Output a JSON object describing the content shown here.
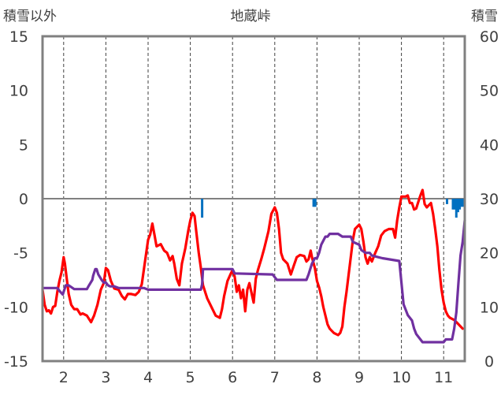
{
  "chart_data": {
    "type": "line",
    "title": "地蔵峠",
    "left_axis_label": "積雪以外",
    "right_axis_label": "積雪",
    "y_left": {
      "range": [
        -15,
        15
      ],
      "ticks": [
        15,
        10,
        5,
        0,
        -5,
        -10,
        -15
      ]
    },
    "y_right": {
      "range": [
        0,
        60
      ],
      "ticks": [
        60,
        50,
        40,
        30,
        20,
        10,
        0
      ]
    },
    "x": {
      "range": [
        1.5,
        11.5
      ],
      "ticks": [
        2,
        3,
        4,
        5,
        6,
        7,
        8,
        9,
        10,
        11
      ]
    },
    "grid": "vertical dashed at day ticks, horizontal at 0",
    "series": [
      {
        "axis": "left",
        "color": "#ff0000",
        "points": [
          [
            1.5,
            -8.4
          ],
          [
            1.55,
            -9.8
          ],
          [
            1.6,
            -10.4
          ],
          [
            1.65,
            -10.3
          ],
          [
            1.7,
            -10.6
          ],
          [
            1.75,
            -10.0
          ],
          [
            1.8,
            -9.9
          ],
          [
            1.85,
            -8.6
          ],
          [
            1.9,
            -7.6
          ],
          [
            1.95,
            -6.8
          ],
          [
            2.0,
            -5.4
          ],
          [
            2.03,
            -6.0
          ],
          [
            2.08,
            -7.6
          ],
          [
            2.12,
            -8.8
          ],
          [
            2.18,
            -9.8
          ],
          [
            2.25,
            -10.2
          ],
          [
            2.32,
            -10.2
          ],
          [
            2.4,
            -10.7
          ],
          [
            2.45,
            -10.6
          ],
          [
            2.55,
            -10.8
          ],
          [
            2.65,
            -11.4
          ],
          [
            2.72,
            -10.8
          ],
          [
            2.8,
            -9.8
          ],
          [
            2.88,
            -8.4
          ],
          [
            2.95,
            -7.8
          ],
          [
            3.0,
            -6.4
          ],
          [
            3.05,
            -6.6
          ],
          [
            3.12,
            -7.6
          ],
          [
            3.2,
            -8.3
          ],
          [
            3.3,
            -8.4
          ],
          [
            3.38,
            -9.0
          ],
          [
            3.45,
            -9.3
          ],
          [
            3.52,
            -8.8
          ],
          [
            3.6,
            -8.8
          ],
          [
            3.7,
            -8.9
          ],
          [
            3.78,
            -8.6
          ],
          [
            3.85,
            -7.9
          ],
          [
            3.92,
            -6.0
          ],
          [
            4.0,
            -3.8
          ],
          [
            4.05,
            -3.3
          ],
          [
            4.1,
            -2.3
          ],
          [
            4.15,
            -3.3
          ],
          [
            4.2,
            -4.4
          ],
          [
            4.3,
            -4.2
          ],
          [
            4.38,
            -4.8
          ],
          [
            4.45,
            -5.0
          ],
          [
            4.52,
            -5.7
          ],
          [
            4.58,
            -5.3
          ],
          [
            4.62,
            -6.0
          ],
          [
            4.68,
            -7.4
          ],
          [
            4.74,
            -8.0
          ],
          [
            4.8,
            -6.0
          ],
          [
            4.88,
            -4.6
          ],
          [
            4.95,
            -3.0
          ],
          [
            5.0,
            -2.0
          ],
          [
            5.05,
            -1.3
          ],
          [
            5.1,
            -1.6
          ],
          [
            5.14,
            -3.0
          ],
          [
            5.2,
            -5.0
          ],
          [
            5.25,
            -6.4
          ],
          [
            5.3,
            -8.0
          ],
          [
            5.4,
            -9.2
          ],
          [
            5.5,
            -10.0
          ],
          [
            5.6,
            -10.8
          ],
          [
            5.7,
            -11.0
          ],
          [
            5.75,
            -10.2
          ],
          [
            5.8,
            -9.0
          ],
          [
            5.88,
            -7.6
          ],
          [
            5.95,
            -7.0
          ],
          [
            6.0,
            -6.6
          ],
          [
            6.05,
            -7.2
          ],
          [
            6.1,
            -8.6
          ],
          [
            6.15,
            -8.0
          ],
          [
            6.2,
            -9.2
          ],
          [
            6.25,
            -8.4
          ],
          [
            6.3,
            -10.4
          ],
          [
            6.35,
            -8.4
          ],
          [
            6.4,
            -7.8
          ],
          [
            6.45,
            -8.7
          ],
          [
            6.5,
            -9.6
          ],
          [
            6.55,
            -7.4
          ],
          [
            6.6,
            -6.6
          ],
          [
            6.68,
            -5.6
          ],
          [
            6.75,
            -4.6
          ],
          [
            6.85,
            -3.0
          ],
          [
            6.92,
            -1.4
          ],
          [
            7.0,
            -0.8
          ],
          [
            7.05,
            -1.3
          ],
          [
            7.1,
            -2.8
          ],
          [
            7.15,
            -5.0
          ],
          [
            7.2,
            -5.6
          ],
          [
            7.3,
            -6.0
          ],
          [
            7.38,
            -7.0
          ],
          [
            7.45,
            -6.2
          ],
          [
            7.52,
            -5.4
          ],
          [
            7.6,
            -5.2
          ],
          [
            7.7,
            -5.3
          ],
          [
            7.75,
            -5.8
          ],
          [
            7.8,
            -5.6
          ],
          [
            7.85,
            -4.8
          ],
          [
            7.88,
            -5.4
          ],
          [
            7.95,
            -6.4
          ],
          [
            8.0,
            -7.6
          ],
          [
            8.05,
            -8.2
          ],
          [
            8.1,
            -9.0
          ],
          [
            8.15,
            -10.0
          ],
          [
            8.2,
            -10.8
          ],
          [
            8.25,
            -11.6
          ],
          [
            8.3,
            -12.0
          ],
          [
            8.4,
            -12.4
          ],
          [
            8.5,
            -12.6
          ],
          [
            8.55,
            -12.4
          ],
          [
            8.6,
            -11.8
          ],
          [
            8.65,
            -10.0
          ],
          [
            8.7,
            -8.6
          ],
          [
            8.75,
            -7.0
          ],
          [
            8.8,
            -5.4
          ],
          [
            8.85,
            -3.8
          ],
          [
            8.9,
            -2.8
          ],
          [
            8.95,
            -2.6
          ],
          [
            9.0,
            -2.4
          ],
          [
            9.05,
            -2.8
          ],
          [
            9.1,
            -4.0
          ],
          [
            9.15,
            -5.4
          ],
          [
            9.2,
            -6.0
          ],
          [
            9.25,
            -5.4
          ],
          [
            9.3,
            -5.8
          ],
          [
            9.38,
            -5.0
          ],
          [
            9.45,
            -4.4
          ],
          [
            9.52,
            -3.4
          ],
          [
            9.6,
            -3.0
          ],
          [
            9.7,
            -2.8
          ],
          [
            9.8,
            -2.8
          ],
          [
            9.85,
            -3.6
          ],
          [
            9.9,
            -2.0
          ],
          [
            9.95,
            -0.8
          ],
          [
            10.0,
            0.2
          ],
          [
            10.1,
            0.2
          ],
          [
            10.15,
            0.3
          ],
          [
            10.2,
            -0.4
          ],
          [
            10.25,
            -0.4
          ],
          [
            10.3,
            -1.0
          ],
          [
            10.35,
            -0.9
          ],
          [
            10.4,
            -0.3
          ],
          [
            10.45,
            0.3
          ],
          [
            10.5,
            0.8
          ],
          [
            10.55,
            -0.5
          ],
          [
            10.6,
            -0.8
          ],
          [
            10.65,
            -0.6
          ],
          [
            10.7,
            -0.4
          ],
          [
            10.75,
            -1.4
          ],
          [
            10.8,
            -2.8
          ],
          [
            10.85,
            -4.4
          ],
          [
            10.9,
            -6.6
          ],
          [
            10.95,
            -8.4
          ],
          [
            11.0,
            -9.6
          ],
          [
            11.05,
            -10.4
          ],
          [
            11.1,
            -10.8
          ],
          [
            11.15,
            -11.0
          ],
          [
            11.25,
            -11.2
          ],
          [
            11.35,
            -11.6
          ],
          [
            11.45,
            -12.0
          ]
        ]
      },
      {
        "axis": "right",
        "color": "#7030a0",
        "points": [
          [
            1.5,
            13.5
          ],
          [
            1.85,
            13.5
          ],
          [
            1.92,
            12.8
          ],
          [
            1.98,
            12.3
          ],
          [
            2.05,
            14.0
          ],
          [
            2.12,
            14.0
          ],
          [
            2.25,
            13.3
          ],
          [
            2.55,
            13.3
          ],
          [
            2.6,
            14.0
          ],
          [
            2.68,
            15.0
          ],
          [
            2.7,
            15.8
          ],
          [
            2.75,
            17.0
          ],
          [
            2.78,
            17.0
          ],
          [
            2.82,
            16.0
          ],
          [
            2.9,
            15.0
          ],
          [
            2.95,
            14.5
          ],
          [
            3.0,
            14.5
          ],
          [
            3.05,
            14.0
          ],
          [
            3.1,
            13.8
          ],
          [
            3.2,
            13.8
          ],
          [
            3.3,
            13.5
          ],
          [
            3.9,
            13.5
          ],
          [
            4.0,
            13.2
          ],
          [
            5.25,
            13.2
          ],
          [
            5.28,
            14.2
          ],
          [
            5.3,
            17.0
          ],
          [
            6.0,
            17.0
          ],
          [
            6.05,
            16.2
          ],
          [
            6.95,
            16.0
          ],
          [
            7.05,
            15.0
          ],
          [
            7.75,
            15.0
          ],
          [
            7.8,
            16.0
          ],
          [
            7.88,
            18.0
          ],
          [
            7.95,
            19.0
          ],
          [
            8.0,
            19.0
          ],
          [
            8.05,
            20.0
          ],
          [
            8.1,
            21.5
          ],
          [
            8.2,
            23.0
          ],
          [
            8.25,
            23.0
          ],
          [
            8.3,
            23.5
          ],
          [
            8.5,
            23.5
          ],
          [
            8.6,
            23.0
          ],
          [
            8.8,
            23.0
          ],
          [
            8.85,
            22.0
          ],
          [
            9.0,
            21.5
          ],
          [
            9.05,
            20.5
          ],
          [
            9.15,
            20.0
          ],
          [
            9.25,
            20.0
          ],
          [
            9.3,
            19.5
          ],
          [
            9.45,
            19.2
          ],
          [
            9.55,
            19.0
          ],
          [
            9.95,
            18.5
          ],
          [
            10.0,
            14.5
          ],
          [
            10.05,
            10.5
          ],
          [
            10.1,
            9.5
          ],
          [
            10.15,
            8.5
          ],
          [
            10.25,
            7.5
          ],
          [
            10.3,
            6.0
          ],
          [
            10.35,
            5.0
          ],
          [
            10.45,
            4.0
          ],
          [
            10.5,
            3.5
          ],
          [
            11.0,
            3.5
          ],
          [
            11.05,
            4.0
          ],
          [
            11.2,
            4.0
          ],
          [
            11.25,
            6.0
          ],
          [
            11.3,
            9.0
          ],
          [
            11.35,
            14.5
          ],
          [
            11.4,
            19.5
          ],
          [
            11.45,
            22.0
          ],
          [
            11.5,
            26.0
          ]
        ]
      }
    ],
    "blue_marks": {
      "axis": "right",
      "color": "#0070c0",
      "bars": [
        [
          5.28,
          -3.5
        ],
        [
          7.92,
          -1.5
        ],
        [
          7.96,
          -1.5
        ],
        [
          11.08,
          -1.0
        ],
        [
          11.22,
          -2.0
        ],
        [
          11.26,
          -2.0
        ],
        [
          11.3,
          -3.5
        ],
        [
          11.34,
          -2.5
        ],
        [
          11.38,
          -2.0
        ],
        [
          11.42,
          -1.5
        ],
        [
          11.46,
          -1.5
        ]
      ]
    }
  }
}
